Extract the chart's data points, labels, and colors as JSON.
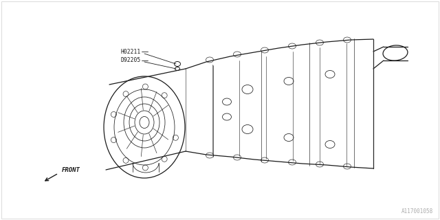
{
  "background_color": "#ffffff",
  "line_color": "#1a1a1a",
  "fig_width": 6.4,
  "fig_height": 3.2,
  "dpi": 100,
  "part_labels": [
    "H02211",
    "D92205"
  ],
  "diagram_id": "A117001058",
  "front_label": "FRONT",
  "border_color": "#cccccc",
  "text_gray": "#aaaaaa"
}
